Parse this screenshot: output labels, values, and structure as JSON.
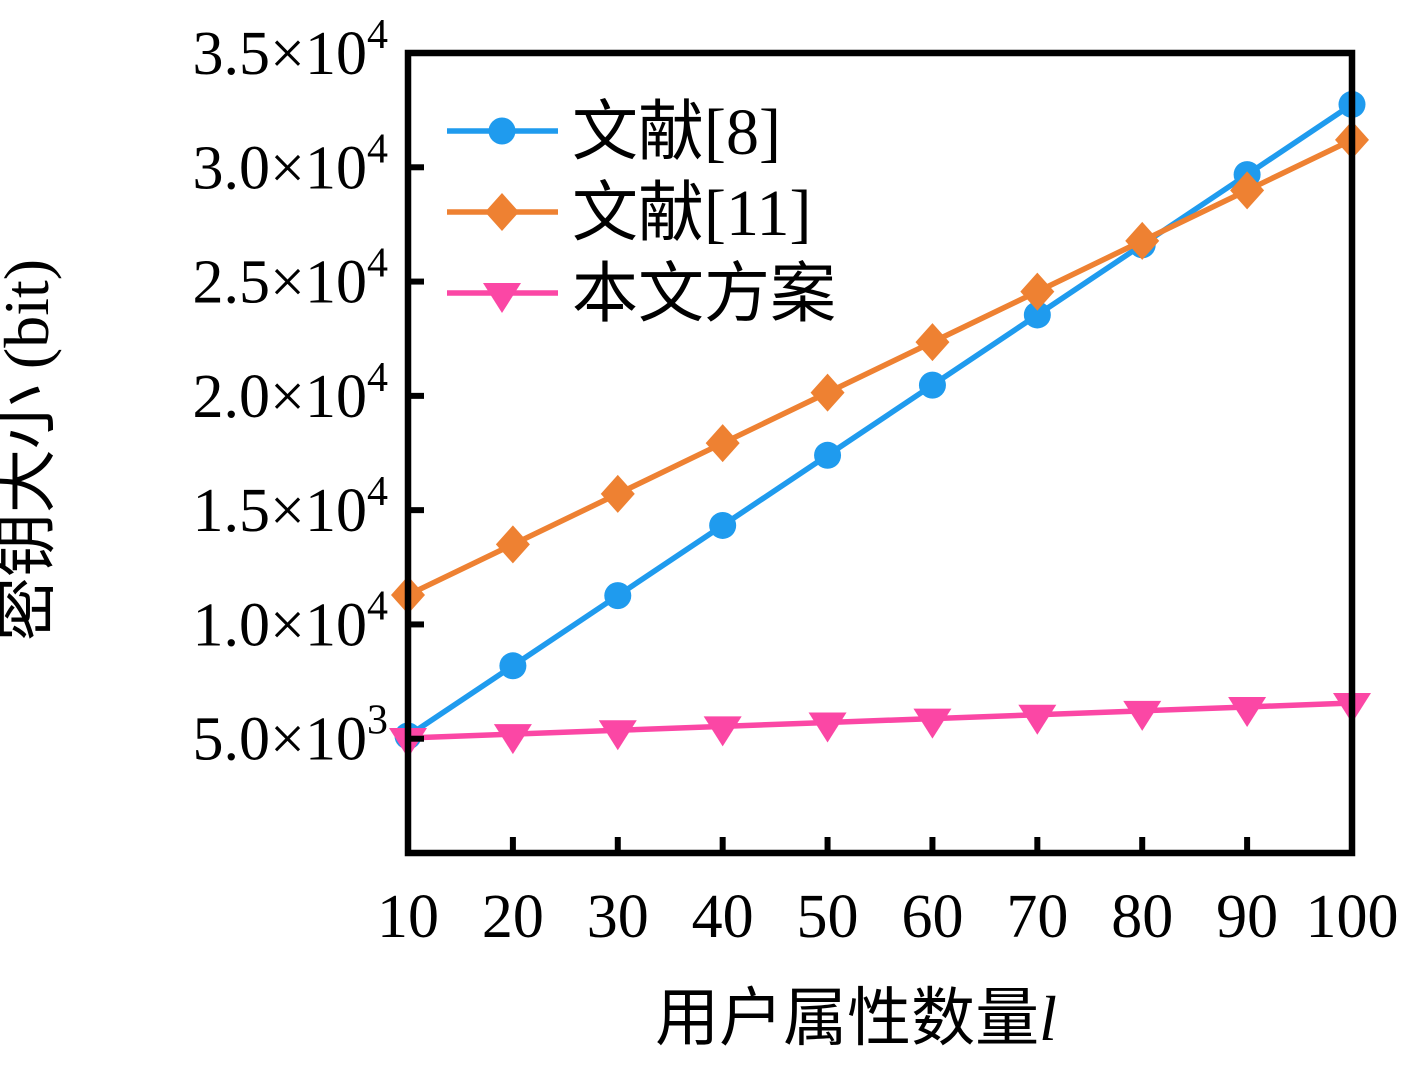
{
  "chart_data": {
    "type": "line",
    "title": "",
    "xlabel_main": "用户属性数量",
    "xlabel_symbol": "l",
    "ylabel": "密钥大小 (bit)",
    "xlim": [
      10,
      100
    ],
    "ylim": [
      0,
      35000
    ],
    "grid": false,
    "legend_position": "upper-left-inside",
    "x": [
      10,
      20,
      30,
      40,
      50,
      60,
      70,
      80,
      90,
      100
    ],
    "x_tick_labels": [
      "10",
      "20",
      "30",
      "40",
      "50",
      "60",
      "70",
      "80",
      "90",
      "100"
    ],
    "y_tick_values": [
      5000,
      10000,
      15000,
      20000,
      25000,
      30000,
      35000
    ],
    "y_tick_labels": [
      {
        "mantissa": "5.0",
        "multiplier": "×10",
        "exponent": "3"
      },
      {
        "mantissa": "1.0",
        "multiplier": "×10",
        "exponent": "4"
      },
      {
        "mantissa": "1.5",
        "multiplier": "×10",
        "exponent": "4"
      },
      {
        "mantissa": "2.0",
        "multiplier": "×10",
        "exponent": "4"
      },
      {
        "mantissa": "2.5",
        "multiplier": "×10",
        "exponent": "4"
      },
      {
        "mantissa": "3.0",
        "multiplier": "×10",
        "exponent": "4"
      },
      {
        "mantissa": "3.5",
        "multiplier": "×10",
        "exponent": "4"
      }
    ],
    "series": [
      {
        "name": "文献[8]",
        "color": "#1f9bee",
        "marker": "circle",
        "values": [
          5120,
          8190,
          11260,
          14330,
          17400,
          20470,
          23540,
          26610,
          29680,
          32750
        ]
      },
      {
        "name": "文献[11]",
        "color": "#ee8132",
        "marker": "diamond",
        "values": [
          11290,
          13500,
          15710,
          17930,
          20140,
          22350,
          24560,
          26780,
          28990,
          31200
        ]
      },
      {
        "name": "本文方案",
        "color": "#fb47a5",
        "marker": "triangle-down",
        "values": [
          5030,
          5200,
          5370,
          5540,
          5710,
          5880,
          6050,
          6220,
          6390,
          6560
        ]
      }
    ],
    "axis_color": "#000000",
    "background_color": "#ffffff"
  }
}
